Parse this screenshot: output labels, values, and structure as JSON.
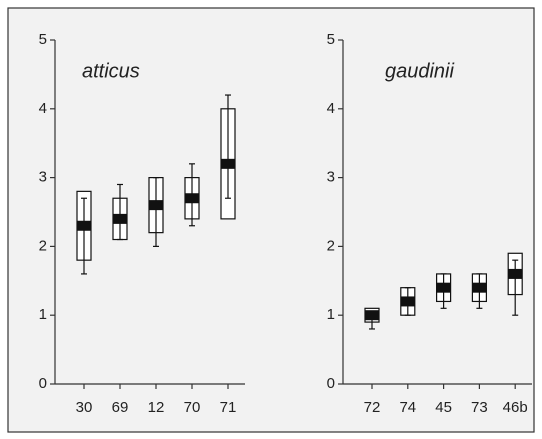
{
  "chart_data": [
    {
      "type": "box",
      "title": "atticus",
      "categories": [
        "30",
        "69",
        "12",
        "70",
        "71"
      ],
      "mean": [
        2.3,
        2.4,
        2.6,
        2.7,
        3.2
      ],
      "box_low": [
        1.8,
        2.1,
        2.2,
        2.4,
        2.4
      ],
      "box_high": [
        2.8,
        2.7,
        3.0,
        3.0,
        4.0
      ],
      "whisker_low": [
        1.6,
        2.1,
        2.0,
        2.3,
        2.7
      ],
      "whisker_high": [
        2.7,
        2.9,
        3.0,
        3.2,
        4.2
      ],
      "ylim": [
        0,
        5
      ],
      "yticks": [
        0,
        1,
        2,
        3,
        4,
        5
      ],
      "color": "#111111"
    },
    {
      "type": "box",
      "title": "gaudinii",
      "categories": [
        "72",
        "74",
        "45",
        "73",
        "46b"
      ],
      "mean": [
        1.0,
        1.2,
        1.4,
        1.4,
        1.6
      ],
      "box_low": [
        0.9,
        1.0,
        1.2,
        1.2,
        1.3
      ],
      "box_high": [
        1.1,
        1.4,
        1.6,
        1.6,
        1.9
      ],
      "whisker_low": [
        0.8,
        1.0,
        1.1,
        1.1,
        1.0
      ],
      "whisker_high": [
        1.0,
        1.4,
        1.6,
        1.6,
        1.8
      ],
      "ylim": [
        0,
        5
      ],
      "yticks": [
        0,
        1,
        2,
        3,
        4,
        5
      ],
      "color": "#111111"
    }
  ]
}
